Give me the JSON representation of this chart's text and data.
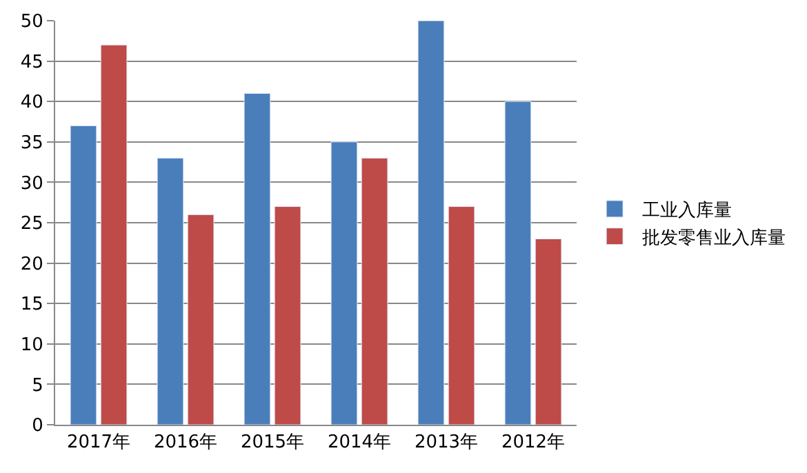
{
  "chart_data": {
    "type": "bar",
    "categories": [
      "2017年",
      "2016年",
      "2015年",
      "2014年",
      "2013年",
      "2012年"
    ],
    "series": [
      {
        "name": "工业入库量",
        "color": "#4a7ebb",
        "values": [
          37,
          33,
          41,
          35,
          50,
          40
        ]
      },
      {
        "name": "批发零售业入库量",
        "color": "#be4b48",
        "values": [
          47,
          26,
          27,
          33,
          27,
          23
        ]
      }
    ],
    "ylim": [
      0,
      50
    ],
    "yticks": [
      0,
      5,
      10,
      15,
      20,
      25,
      30,
      35,
      40,
      45,
      50
    ],
    "grid": "y",
    "legend": "right"
  }
}
